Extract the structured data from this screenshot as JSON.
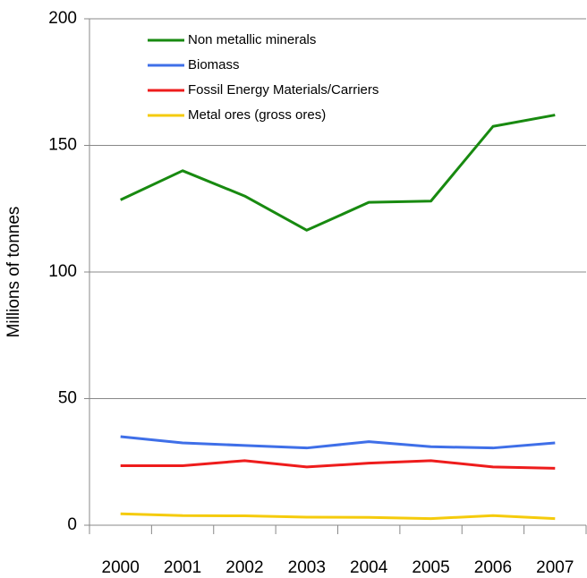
{
  "chart_data": {
    "type": "line",
    "y_axis_label": "Millions of tonnes",
    "categories": [
      "2000",
      "2001",
      "2002",
      "2003",
      "2004",
      "2005",
      "2006",
      "2007"
    ],
    "series": [
      {
        "name": "Non metallic minerals",
        "color": "#188a10",
        "values": [
          128.5,
          140,
          130,
          116.5,
          127.5,
          128,
          157.5,
          162
        ]
      },
      {
        "name": "Biomass",
        "color": "#3f6fe8",
        "values": [
          35,
          32.5,
          31.5,
          30.5,
          33,
          31,
          30.5,
          32.5
        ]
      },
      {
        "name": "Fossil Energy Materials/Carriers",
        "color": "#ee1c1c",
        "values": [
          23.5,
          23.5,
          25.5,
          23,
          24.5,
          25.5,
          23,
          22.5
        ]
      },
      {
        "name": "Metal ores (gross ores)",
        "color": "#f5cb0c",
        "values": [
          4.5,
          3.8,
          3.7,
          3.2,
          3.1,
          2.6,
          3.8,
          2.6
        ]
      }
    ],
    "ylim": [
      0,
      200
    ],
    "yticks": [
      0,
      50,
      100,
      150,
      200
    ],
    "grid": true
  }
}
